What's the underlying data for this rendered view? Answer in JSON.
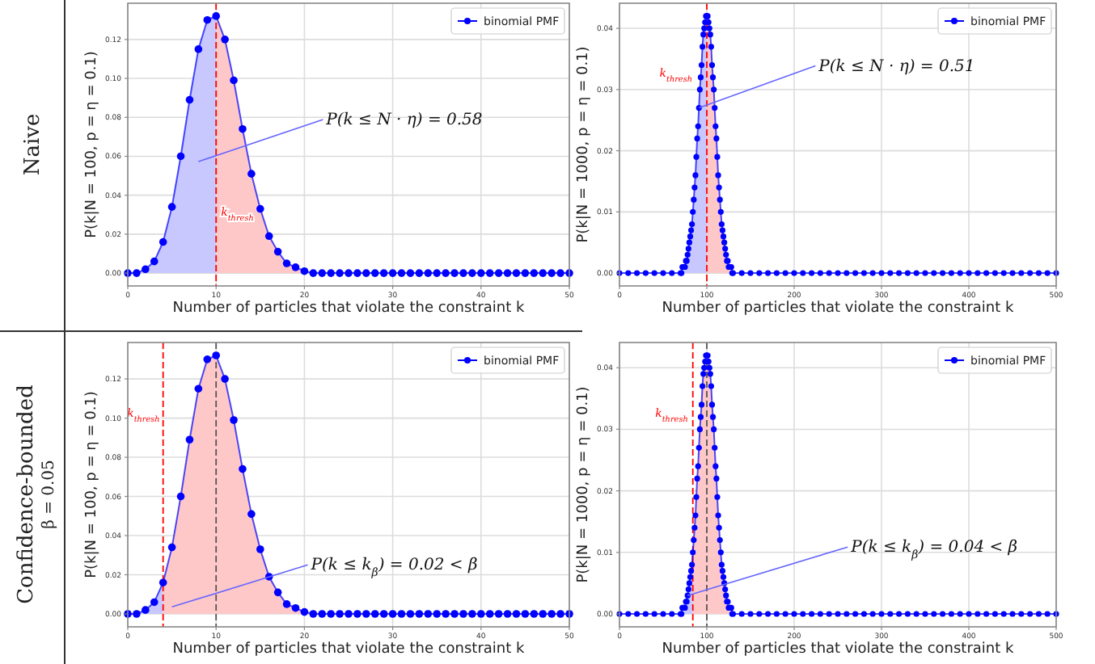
{
  "chart_data": [
    {
      "type": "line",
      "xlabel": "Number of particles that violate the constraint k",
      "ylabel": "P(k|N = 100, p = η = 0.1)",
      "x": [
        0,
        1,
        2,
        3,
        4,
        5,
        6,
        7,
        8,
        9,
        10,
        11,
        12,
        13,
        14,
        15,
        16,
        17,
        18,
        19,
        20,
        21,
        22,
        23,
        24,
        25,
        26,
        27,
        28,
        29,
        30,
        31,
        32,
        33,
        34,
        35,
        36,
        37,
        38,
        39,
        40,
        41,
        42,
        43,
        44,
        45,
        46,
        47,
        48,
        49,
        50
      ],
      "series": [
        {
          "type": "area",
          "marker": "none",
          "color": "#c8c8ff",
          "x": [
            0,
            1,
            2,
            3,
            4,
            5,
            6,
            7,
            8,
            9,
            10
          ],
          "values": [
            0.0,
            0.0,
            0.002,
            0.006,
            0.016,
            0.034,
            0.06,
            0.089,
            0.115,
            0.13,
            0.132
          ]
        },
        {
          "type": "area",
          "marker": "none",
          "color": "#ffc8c8",
          "x": [
            10,
            11,
            12,
            13,
            14,
            15,
            16,
            17,
            18,
            19,
            20,
            21,
            22
          ],
          "values": [
            0.132,
            0.12,
            0.099,
            0.074,
            0.051,
            0.033,
            0.019,
            0.011,
            0.005,
            0.003,
            0.001,
            0.0,
            0.0
          ]
        },
        {
          "name": "binomial PMF",
          "color": "#0000ff",
          "values": [
            0.0,
            0.0,
            0.002,
            0.006,
            0.016,
            0.034,
            0.06,
            0.089,
            0.115,
            0.13,
            0.132,
            0.12,
            0.099,
            0.074,
            0.051,
            0.033,
            0.019,
            0.011,
            0.005,
            0.003,
            0.001,
            0.0,
            0,
            0,
            0,
            0,
            0,
            0,
            0,
            0,
            0,
            0,
            0,
            0,
            0,
            0,
            0,
            0,
            0,
            0,
            0,
            0,
            0,
            0,
            0,
            0,
            0,
            0,
            0,
            0,
            0
          ]
        }
      ],
      "xlim": [
        0,
        50
      ],
      "xticks": [
        0,
        10,
        20,
        30,
        40,
        50
      ],
      "ylim": [
        -0.0066,
        0.1386
      ],
      "yticks": [
        {
          "value": 0,
          "label": "0.00"
        },
        {
          "value": 0.02,
          "label": "0.02"
        },
        {
          "value": 0.04,
          "label": "0.04"
        },
        {
          "value": 0.06,
          "label": "0.06"
        },
        {
          "value": 0.08,
          "label": "0.08"
        },
        {
          "value": 0.1,
          "label": "0.10"
        },
        {
          "value": 0.12,
          "label": "0.12"
        }
      ],
      "ref_lines": [
        {
          "axis": "x",
          "value": 10,
          "label": "k$_{thresh}$",
          "color": "#ff0000",
          "line_style": "dashed"
        }
      ],
      "annotations": [
        "Naive",
        "P(k ≤ N · η) = 0.58"
      ],
      "grid": true,
      "legend": "top right",
      "marker": "circle",
      "line_style": "solid"
    },
    {
      "type": "line",
      "xlabel": "Number of particles that violate the constraint k",
      "ylabel": "P(k|N = 1000, p = η = 0.1)",
      "x": [
        0,
        10,
        20,
        30,
        40,
        50,
        60,
        70,
        71,
        72,
        73,
        74,
        75,
        76,
        77,
        78,
        79,
        80,
        81,
        82,
        83,
        84,
        85,
        86,
        87,
        88,
        89,
        90,
        91,
        92,
        93,
        94,
        95,
        96,
        97,
        98,
        99,
        100,
        101,
        102,
        103,
        104,
        105,
        106,
        107,
        108,
        109,
        110,
        111,
        112,
        113,
        114,
        115,
        116,
        117,
        118,
        119,
        120,
        121,
        122,
        123,
        124,
        125,
        126,
        127,
        128,
        129,
        130,
        140,
        150,
        160,
        170,
        180,
        190,
        200,
        210,
        220,
        230,
        240,
        250,
        260,
        270,
        280,
        290,
        300,
        310,
        320,
        330,
        340,
        350,
        360,
        370,
        380,
        390,
        400,
        410,
        420,
        430,
        440,
        450,
        460,
        470,
        480,
        490,
        500
      ],
      "series": [
        {
          "type": "area",
          "marker": "none",
          "color": "#c8c8ff",
          "x": [
            60,
            70,
            71,
            72,
            73,
            74,
            75,
            76,
            77,
            78,
            79,
            80,
            81,
            82,
            83,
            84,
            85,
            86,
            87,
            88,
            89,
            90,
            91,
            92,
            93,
            94,
            95,
            96,
            97,
            98,
            99,
            100
          ],
          "values": [
            0,
            0.0,
            0.0,
            0.001,
            0.001,
            0.001,
            0.001,
            0.002,
            0.002,
            0.003,
            0.004,
            0.005,
            0.006,
            0.007,
            0.008,
            0.01,
            0.012,
            0.014,
            0.016,
            0.019,
            0.022,
            0.024,
            0.027,
            0.03,
            0.032,
            0.034,
            0.037,
            0.039,
            0.04,
            0.041,
            0.042,
            0.042
          ]
        },
        {
          "type": "area",
          "marker": "none",
          "color": "#ffc8c8",
          "x": [
            100,
            101,
            102,
            103,
            104,
            105,
            106,
            107,
            108,
            109,
            110,
            111,
            112,
            113,
            114,
            115,
            116,
            117,
            118,
            119,
            120,
            121,
            122,
            123,
            124,
            125,
            126,
            127,
            128,
            129,
            130,
            140
          ],
          "values": [
            0.042,
            0.042,
            0.041,
            0.04,
            0.039,
            0.037,
            0.034,
            0.032,
            0.03,
            0.027,
            0.024,
            0.022,
            0.019,
            0.016,
            0.014,
            0.012,
            0.01,
            0.008,
            0.007,
            0.006,
            0.005,
            0.004,
            0.003,
            0.002,
            0.002,
            0.001,
            0.001,
            0.001,
            0.001,
            0.0,
            0.0,
            0
          ]
        },
        {
          "name": "binomial PMF",
          "color": "#0000ff",
          "values": [
            0,
            0,
            0,
            0,
            0,
            0,
            0,
            0.0,
            0.0,
            0.001,
            0.001,
            0.001,
            0.001,
            0.002,
            0.002,
            0.003,
            0.004,
            0.005,
            0.006,
            0.007,
            0.008,
            0.01,
            0.012,
            0.014,
            0.016,
            0.019,
            0.022,
            0.024,
            0.027,
            0.03,
            0.032,
            0.034,
            0.037,
            0.039,
            0.04,
            0.041,
            0.042,
            0.042,
            0.042,
            0.041,
            0.04,
            0.039,
            0.037,
            0.034,
            0.032,
            0.03,
            0.027,
            0.024,
            0.022,
            0.019,
            0.016,
            0.014,
            0.012,
            0.01,
            0.008,
            0.007,
            0.006,
            0.005,
            0.004,
            0.003,
            0.002,
            0.002,
            0.001,
            0.001,
            0.001,
            0.001,
            0.0,
            0.0,
            0,
            0,
            0,
            0,
            0,
            0,
            0,
            0,
            0,
            0,
            0,
            0,
            0,
            0,
            0,
            0,
            0,
            0,
            0,
            0,
            0,
            0,
            0,
            0,
            0,
            0,
            0,
            0,
            0,
            0,
            0,
            0,
            0,
            0,
            0,
            0,
            0
          ]
        }
      ],
      "xlim": [
        0,
        500
      ],
      "xticks": [
        0,
        100,
        200,
        300,
        400,
        500
      ],
      "ylim": [
        -0.0021,
        0.0441
      ],
      "yticks": [
        {
          "value": 0,
          "label": "0.00"
        },
        {
          "value": 0.01,
          "label": "0.01"
        },
        {
          "value": 0.02,
          "label": "0.02"
        },
        {
          "value": 0.03,
          "label": "0.03"
        },
        {
          "value": 0.04,
          "label": "0.04"
        }
      ],
      "ref_lines": [
        {
          "axis": "x",
          "value": 100,
          "label": "k$_{thresh}$",
          "color": "#ff0000",
          "line_style": "dashed"
        }
      ],
      "annotations": [
        {
          "text": "P(k ≤ N · η) = 0.51",
          "x": 91,
          "y": 0.027
        }
      ],
      "grid": true,
      "legend": "top right",
      "marker": "circle",
      "line_style": "solid"
    },
    {
      "type": "line",
      "xlabel": "Number of particles that violate the constraint k",
      "ylabel": "P(k|N = 100, p = η = 0.1)",
      "x": [
        0,
        1,
        2,
        3,
        4,
        5,
        6,
        7,
        8,
        9,
        10,
        11,
        12,
        13,
        14,
        15,
        16,
        17,
        18,
        19,
        20,
        21,
        22,
        23,
        24,
        25,
        26,
        27,
        28,
        29,
        30,
        31,
        32,
        33,
        34,
        35,
        36,
        37,
        38,
        39,
        40,
        41,
        42,
        43,
        44,
        45,
        46,
        47,
        48,
        49,
        50
      ],
      "series": [
        {
          "type": "area",
          "marker": "none",
          "color": "#c8c8ff",
          "x": [
            0,
            1,
            2,
            3,
            4
          ],
          "values": [
            0.0,
            0.0,
            0.002,
            0.006,
            0.016
          ]
        },
        {
          "type": "area",
          "marker": "none",
          "color": "#ffc8c8",
          "x": [
            4,
            5,
            6,
            7,
            8,
            9,
            10,
            11,
            12,
            13,
            14,
            15,
            16,
            17,
            18,
            19,
            20,
            21,
            22
          ],
          "values": [
            0.016,
            0.034,
            0.06,
            0.089,
            0.115,
            0.13,
            0.132,
            0.12,
            0.099,
            0.074,
            0.051,
            0.033,
            0.019,
            0.011,
            0.005,
            0.003,
            0.001,
            0.0,
            0.0
          ]
        },
        {
          "name": "binomial PMF",
          "color": "#0000ff",
          "values": [
            0.0,
            0.0,
            0.002,
            0.006,
            0.016,
            0.034,
            0.06,
            0.089,
            0.115,
            0.13,
            0.132,
            0.12,
            0.099,
            0.074,
            0.051,
            0.033,
            0.019,
            0.011,
            0.005,
            0.003,
            0.001,
            0.0,
            0,
            0,
            0,
            0,
            0,
            0,
            0,
            0,
            0,
            0,
            0,
            0,
            0,
            0,
            0,
            0,
            0,
            0,
            0,
            0,
            0,
            0,
            0,
            0,
            0,
            0,
            0,
            0,
            0
          ]
        }
      ],
      "xlim": [
        0,
        50
      ],
      "xticks": [
        0,
        10,
        20,
        30,
        40,
        50
      ],
      "ylim": [
        -0.0066,
        0.1386
      ],
      "yticks": [
        {
          "value": 0,
          "label": "0.00"
        },
        {
          "value": 0.02,
          "label": "0.02"
        },
        {
          "value": 0.04,
          "label": "0.04"
        },
        {
          "value": 0.06,
          "label": "0.06"
        },
        {
          "value": 0.08,
          "label": "0.08"
        },
        {
          "value": 0.1,
          "label": "0.10"
        },
        {
          "value": 0.12,
          "label": "0.12"
        }
      ],
      "ref_lines": [
        {
          "axis": "x",
          "value": 4,
          "label": "k$_{thresh}$",
          "color": "#ff0000",
          "line_style": "dashed"
        },
        {
          "axis": "x",
          "value": 10,
          "color": "#555555",
          "line_style": "dashed"
        }
      ],
      "annotations": [
        "Confidence-bounded",
        "β = 0.05",
        "P(k ≤ k$_{β}$) = 0.02 < β"
      ],
      "grid": true,
      "legend": "top right",
      "marker": "circle",
      "line_style": "solid"
    },
    {
      "type": "line",
      "xlabel": "Number of particles that violate the constraint k",
      "ylabel": "P(k|N = 1000, p = η = 0.1)",
      "x": [
        0,
        10,
        20,
        30,
        40,
        50,
        60,
        70,
        71,
        72,
        73,
        74,
        75,
        76,
        77,
        78,
        79,
        80,
        81,
        82,
        83,
        84,
        85,
        86,
        87,
        88,
        89,
        90,
        91,
        92,
        93,
        94,
        95,
        96,
        97,
        98,
        99,
        100,
        101,
        102,
        103,
        104,
        105,
        106,
        107,
        108,
        109,
        110,
        111,
        112,
        113,
        114,
        115,
        116,
        117,
        118,
        119,
        120,
        121,
        122,
        123,
        124,
        125,
        126,
        127,
        128,
        129,
        130,
        140,
        150,
        160,
        170,
        180,
        190,
        200,
        210,
        220,
        230,
        240,
        250,
        260,
        270,
        280,
        290,
        300,
        310,
        320,
        330,
        340,
        350,
        360,
        370,
        380,
        390,
        400,
        410,
        420,
        430,
        440,
        450,
        460,
        470,
        480,
        490,
        500
      ],
      "series": [
        {
          "type": "area",
          "marker": "none",
          "color": "#c8c8ff",
          "x": [
            60,
            70,
            71,
            72,
            73,
            74,
            75,
            76,
            77,
            78,
            79,
            80,
            81,
            82,
            83,
            84
          ],
          "values": [
            0,
            0.0,
            0.0,
            0.001,
            0.001,
            0.001,
            0.001,
            0.002,
            0.002,
            0.003,
            0.004,
            0.005,
            0.006,
            0.007,
            0.008,
            0.01
          ]
        },
        {
          "type": "area",
          "marker": "none",
          "color": "#ffc8c8",
          "x": [
            84,
            85,
            86,
            87,
            88,
            89,
            90,
            91,
            92,
            93,
            94,
            95,
            96,
            97,
            98,
            99,
            100,
            101,
            102,
            103,
            104,
            105,
            106,
            107,
            108,
            109,
            110,
            111,
            112,
            113,
            114,
            115,
            116,
            117,
            118,
            119,
            120,
            121,
            122,
            123,
            124,
            125,
            126,
            127,
            128,
            129,
            130,
            140
          ],
          "values": [
            0.01,
            0.012,
            0.014,
            0.016,
            0.019,
            0.022,
            0.024,
            0.027,
            0.03,
            0.032,
            0.034,
            0.037,
            0.039,
            0.04,
            0.041,
            0.042,
            0.042,
            0.042,
            0.041,
            0.04,
            0.039,
            0.037,
            0.034,
            0.032,
            0.03,
            0.027,
            0.024,
            0.022,
            0.019,
            0.016,
            0.014,
            0.012,
            0.01,
            0.008,
            0.007,
            0.006,
            0.005,
            0.004,
            0.003,
            0.002,
            0.002,
            0.001,
            0.001,
            0.001,
            0.001,
            0.0,
            0.0,
            0
          ]
        },
        {
          "name": "binomial PMF",
          "color": "#0000ff",
          "values": [
            0,
            0,
            0,
            0,
            0,
            0,
            0,
            0.0,
            0.0,
            0.001,
            0.001,
            0.001,
            0.001,
            0.002,
            0.002,
            0.003,
            0.004,
            0.005,
            0.006,
            0.007,
            0.008,
            0.01,
            0.012,
            0.014,
            0.016,
            0.019,
            0.022,
            0.024,
            0.027,
            0.03,
            0.032,
            0.034,
            0.037,
            0.039,
            0.04,
            0.041,
            0.042,
            0.042,
            0.042,
            0.041,
            0.04,
            0.039,
            0.037,
            0.034,
            0.032,
            0.03,
            0.027,
            0.024,
            0.022,
            0.019,
            0.016,
            0.014,
            0.012,
            0.01,
            0.008,
            0.007,
            0.006,
            0.005,
            0.004,
            0.003,
            0.002,
            0.002,
            0.001,
            0.001,
            0.001,
            0.001,
            0.0,
            0.0,
            0,
            0,
            0,
            0,
            0,
            0,
            0,
            0,
            0,
            0,
            0,
            0,
            0,
            0,
            0,
            0,
            0,
            0,
            0,
            0,
            0,
            0,
            0,
            0,
            0,
            0,
            0,
            0,
            0,
            0,
            0,
            0,
            0,
            0,
            0,
            0,
            0
          ]
        }
      ],
      "xlim": [
        0,
        500
      ],
      "xticks": [
        0,
        100,
        200,
        300,
        400,
        500
      ],
      "ylim": [
        -0.0021,
        0.0441
      ],
      "yticks": [
        {
          "value": 0,
          "label": "0.00"
        },
        {
          "value": 0.01,
          "label": "0.01"
        },
        {
          "value": 0.02,
          "label": "0.02"
        },
        {
          "value": 0.03,
          "label": "0.03"
        },
        {
          "value": 0.04,
          "label": "0.04"
        }
      ],
      "ref_lines": [
        {
          "axis": "x",
          "value": 84,
          "label": "k$_{thresh}$",
          "color": "#ff0000",
          "line_style": "dashed"
        },
        {
          "axis": "x",
          "value": 100,
          "color": "#555555",
          "line_style": "dashed"
        }
      ],
      "annotations": [
        {
          "text": "P(k ≤ k$_{β}$) = 0.04 < β",
          "x": 78,
          "y": 0.003
        }
      ],
      "grid": true,
      "legend": "top right",
      "marker": "circle",
      "line_style": "solid"
    }
  ]
}
